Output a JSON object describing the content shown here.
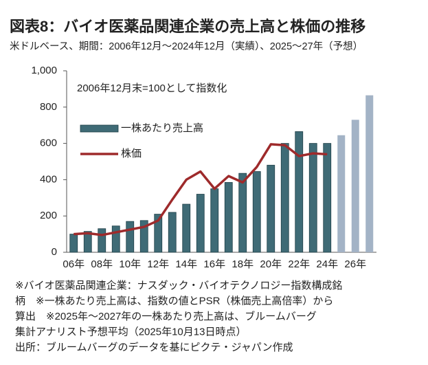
{
  "chart_data": {
    "type": "bar_line",
    "title": "図表8：バイオ医薬品関連企業の売上高と株価の推移",
    "subtitle": "米ドルベース、期間：2006年12月～2024年12月（実績）、2025～27年（予想）",
    "annotation": "2006年12月末=100として指数化",
    "categories": [
      "06年",
      null,
      "08年",
      null,
      "10年",
      null,
      "12年",
      null,
      "14年",
      null,
      "16年",
      null,
      "18年",
      null,
      "20年",
      null,
      "22年",
      null,
      "24年",
      null,
      "26年",
      null
    ],
    "series": [
      {
        "name": "一株あたり売上高",
        "type": "bar",
        "color": "#3f6b76",
        "colors": [
          "#3f6b76",
          "#3f6b76",
          "#3f6b76",
          "#3f6b76",
          "#3f6b76",
          "#3f6b76",
          "#3f6b76",
          "#3f6b76",
          "#3f6b76",
          "#3f6b76",
          "#3f6b76",
          "#3f6b76",
          "#3f6b76",
          "#3f6b76",
          "#3f6b76",
          "#3f6b76",
          "#3f6b76",
          "#3f6b76",
          "#3f6b76",
          "#a3b3c6",
          "#a3b3c6",
          "#a3b3c6"
        ],
        "values": [
          100,
          115,
          130,
          145,
          170,
          175,
          210,
          220,
          265,
          320,
          350,
          385,
          435,
          445,
          480,
          600,
          665,
          600,
          600,
          645,
          730,
          865
        ]
      },
      {
        "name": "株価",
        "type": "line",
        "color": "#9e2a2b",
        "values": [
          100,
          105,
          95,
          110,
          125,
          140,
          175,
          290,
          400,
          445,
          350,
          420,
          385,
          470,
          595,
          590,
          530,
          545,
          540,
          null,
          null,
          null
        ]
      }
    ],
    "ylim": [
      0,
      1000
    ],
    "yticks": [
      0,
      200,
      400,
      600,
      800,
      {
        "value": 1000,
        "label": "1,000"
      }
    ],
    "notes": [
      "※バイオ医薬品関連企業：ナスダック・バイオテクノロジー指数構成銘",
      "柄　※一株あたり売上高は、指数の値とPSR（株価売上高倍率）から",
      "算出　※2025年～2027年の一株あたり売上高は、ブルームバーグ",
      "集計アナリスト予想平均（2025年10月13日時点）",
      "出所：ブルームバーグのデータを基にピクテ・ジャパン作成"
    ]
  }
}
